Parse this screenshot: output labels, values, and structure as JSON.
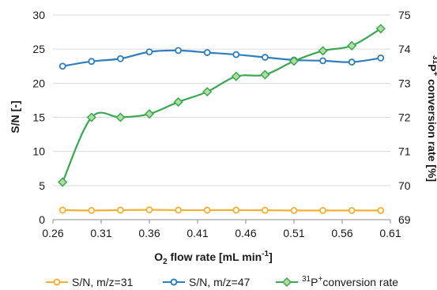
{
  "chart_data": {
    "type": "line",
    "xlabel": {
      "prefix": "O",
      "sub": "2",
      "mid": " flow rate [mL min",
      "sup": "-1",
      "suffix": "]"
    },
    "ylabel_left": "S/N [-]",
    "ylabel_right": {
      "sup": "31",
      "main": "P",
      "sup2": "+",
      "suffix": " conversion rate [%]"
    },
    "x": [
      0.27,
      0.3,
      0.33,
      0.36,
      0.39,
      0.42,
      0.45,
      0.48,
      0.51,
      0.54,
      0.57,
      0.6
    ],
    "xlim": [
      0.26,
      0.61
    ],
    "xticks": [
      "0.26",
      "0.31",
      "0.36",
      "0.41",
      "0.46",
      "0.51",
      "0.56",
      "0.61"
    ],
    "xtick_values": [
      0.26,
      0.31,
      0.36,
      0.41,
      0.46,
      0.51,
      0.56,
      0.61
    ],
    "ylim_left": [
      0,
      30
    ],
    "yticks_left": [
      "0",
      "5",
      "10",
      "15",
      "20",
      "25",
      "30"
    ],
    "ylim_right": [
      69,
      75
    ],
    "yticks_right": [
      "69",
      "70",
      "71",
      "72",
      "73",
      "74",
      "75"
    ],
    "grid": "horizontal",
    "legend_position": "bottom",
    "series": [
      {
        "name": "S/N, m/z=31",
        "axis": "left",
        "color": "#f2b134",
        "marker": "circle",
        "values": [
          1.4,
          1.35,
          1.4,
          1.45,
          1.4,
          1.4,
          1.4,
          1.38,
          1.35,
          1.35,
          1.35,
          1.35
        ]
      },
      {
        "name": "S/N, m/z=47",
        "axis": "left",
        "color": "#2f7ebd",
        "marker": "circle",
        "values": [
          22.5,
          23.2,
          23.6,
          24.6,
          24.8,
          24.5,
          24.2,
          23.8,
          23.4,
          23.3,
          23.1,
          23.7
        ]
      },
      {
        "name": {
          "sup": "31",
          "main": "P",
          "sup2": "+",
          "suffix": "conversion rate"
        },
        "axis": "right",
        "color": "#3aa853",
        "marker": "diamond",
        "values": [
          70.1,
          72.0,
          72.0,
          72.1,
          72.45,
          72.75,
          73.2,
          73.25,
          73.65,
          73.95,
          74.1,
          74.6
        ]
      }
    ]
  }
}
